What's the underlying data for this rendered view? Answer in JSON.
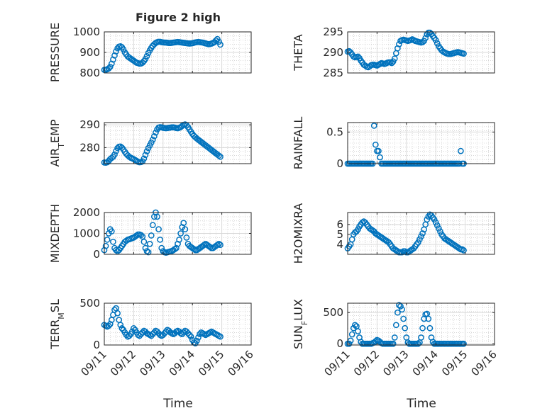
{
  "figure": {
    "title": "Figure 2 high",
    "xlabel": "Time"
  },
  "chart_data": [
    {
      "type": "scatter",
      "ylabel": "PRESSURE",
      "ylim": [
        800,
        1000
      ],
      "yticks": [
        800,
        900,
        1000
      ],
      "x": [
        0.0,
        0.05,
        0.1,
        0.15,
        0.2,
        0.25,
        0.3,
        0.35,
        0.4,
        0.45,
        0.5,
        0.55,
        0.6,
        0.65,
        0.7,
        0.75,
        0.8,
        0.85,
        0.9,
        0.95,
        1.0,
        1.05,
        1.1,
        1.15,
        1.2,
        1.25,
        1.3,
        1.35,
        1.4,
        1.45,
        1.5,
        1.55,
        1.6,
        1.65,
        1.7,
        1.75,
        1.8,
        1.85,
        1.9,
        1.95,
        2.0,
        2.05,
        2.1,
        2.15,
        2.2,
        2.25,
        2.3,
        2.35,
        2.4,
        2.45,
        2.5,
        2.55,
        2.6,
        2.65,
        2.7,
        2.75,
        2.8,
        2.85,
        2.9,
        2.95,
        3.0,
        3.05,
        3.1,
        3.15,
        3.2,
        3.25,
        3.3,
        3.35,
        3.4,
        3.45,
        3.5,
        3.55,
        3.6,
        3.65,
        3.7,
        3.75,
        3.8,
        3.85,
        3.9,
        3.95
      ],
      "y": [
        815,
        815,
        818,
        822,
        830,
        845,
        865,
        885,
        905,
        920,
        928,
        930,
        925,
        915,
        900,
        890,
        880,
        875,
        870,
        865,
        860,
        855,
        850,
        848,
        845,
        846,
        850,
        858,
        868,
        882,
        897,
        910,
        922,
        932,
        940,
        946,
        950,
        952,
        952,
        950,
        949,
        948,
        948,
        947,
        946,
        946,
        947,
        948,
        949,
        950,
        951,
        950,
        949,
        948,
        947,
        946,
        945,
        944,
        943,
        944,
        945,
        947,
        949,
        950,
        951,
        950,
        949,
        948,
        946,
        944,
        942,
        940,
        941,
        943,
        946,
        950,
        958,
        965,
        952,
        938
      ]
    },
    {
      "type": "scatter",
      "ylabel": "THETA",
      "ylim": [
        285,
        295
      ],
      "yticks": [
        285,
        290,
        295
      ],
      "x": [
        0.0,
        0.05,
        0.1,
        0.15,
        0.2,
        0.25,
        0.3,
        0.35,
        0.4,
        0.45,
        0.5,
        0.55,
        0.6,
        0.65,
        0.7,
        0.75,
        0.8,
        0.85,
        0.9,
        0.95,
        1.0,
        1.05,
        1.1,
        1.15,
        1.2,
        1.25,
        1.3,
        1.35,
        1.4,
        1.45,
        1.5,
        1.55,
        1.6,
        1.65,
        1.7,
        1.75,
        1.8,
        1.85,
        1.9,
        1.95,
        2.0,
        2.05,
        2.1,
        2.15,
        2.2,
        2.25,
        2.3,
        2.35,
        2.4,
        2.45,
        2.5,
        2.55,
        2.6,
        2.65,
        2.7,
        2.75,
        2.8,
        2.85,
        2.9,
        2.95,
        3.0,
        3.05,
        3.1,
        3.15,
        3.2,
        3.25,
        3.3,
        3.35,
        3.4,
        3.45,
        3.5,
        3.55,
        3.6,
        3.65,
        3.7,
        3.75,
        3.8,
        3.85,
        3.9,
        3.95
      ],
      "y": [
        290.2,
        290.3,
        290.0,
        289.5,
        289.0,
        288.8,
        288.9,
        289.0,
        288.6,
        288.0,
        287.5,
        287.0,
        286.8,
        286.5,
        286.4,
        286.6,
        286.9,
        287.0,
        287.0,
        286.9,
        286.8,
        287.0,
        287.2,
        287.4,
        287.3,
        287.2,
        287.3,
        287.5,
        287.6,
        287.6,
        287.4,
        287.8,
        288.5,
        289.8,
        291.0,
        292.0,
        292.8,
        293.0,
        293.1,
        293.0,
        292.9,
        292.8,
        292.9,
        293.0,
        293.2,
        293.0,
        292.8,
        292.7,
        292.6,
        292.5,
        292.4,
        292.5,
        292.8,
        293.5,
        294.4,
        294.8,
        294.8,
        294.5,
        294.0,
        293.5,
        293.0,
        292.2,
        291.5,
        291.0,
        290.5,
        290.2,
        290.0,
        289.8,
        289.7,
        289.6,
        289.6,
        289.7,
        289.8,
        289.9,
        290.0,
        290.1,
        290.0,
        289.9,
        289.8,
        289.7
      ]
    },
    {
      "type": "scatter",
      "ylabel": "AIR_TEMP",
      "ylim": [
        273,
        291
      ],
      "yticks": [
        280,
        290
      ],
      "x": [
        0.0,
        0.05,
        0.1,
        0.15,
        0.2,
        0.25,
        0.3,
        0.35,
        0.4,
        0.45,
        0.5,
        0.55,
        0.6,
        0.65,
        0.7,
        0.75,
        0.8,
        0.85,
        0.9,
        0.95,
        1.0,
        1.05,
        1.1,
        1.15,
        1.2,
        1.25,
        1.3,
        1.35,
        1.4,
        1.45,
        1.5,
        1.55,
        1.6,
        1.65,
        1.7,
        1.75,
        1.8,
        1.85,
        1.9,
        1.95,
        2.0,
        2.05,
        2.1,
        2.15,
        2.2,
        2.25,
        2.3,
        2.35,
        2.4,
        2.45,
        2.5,
        2.55,
        2.6,
        2.65,
        2.7,
        2.75,
        2.8,
        2.85,
        2.9,
        2.95,
        3.0,
        3.05,
        3.1,
        3.15,
        3.2,
        3.25,
        3.3,
        3.35,
        3.4,
        3.45,
        3.5,
        3.55,
        3.6,
        3.65,
        3.7,
        3.75,
        3.8,
        3.85,
        3.9,
        3.95
      ],
      "y": [
        273.5,
        273.4,
        273.6,
        274.2,
        275.0,
        275.5,
        276.0,
        277.0,
        278.5,
        279.8,
        280.4,
        280.5,
        280.0,
        279.2,
        278.2,
        277.3,
        276.6,
        276.0,
        275.6,
        275.3,
        275.0,
        274.6,
        274.2,
        273.8,
        273.6,
        273.7,
        274.0,
        275.2,
        276.8,
        278.4,
        279.8,
        281.0,
        282.2,
        283.5,
        285.0,
        286.6,
        288.0,
        288.8,
        289.0,
        288.9,
        288.7,
        288.6,
        288.5,
        288.6,
        288.7,
        288.8,
        288.9,
        288.9,
        288.8,
        288.6,
        288.5,
        288.7,
        289.0,
        289.5,
        290.0,
        290.2,
        289.8,
        289.0,
        288.0,
        287.0,
        286.0,
        285.2,
        284.6,
        284.0,
        283.5,
        283.0,
        282.5,
        282.0,
        281.5,
        281.0,
        280.5,
        280.0,
        279.5,
        279.0,
        278.5,
        278.0,
        277.5,
        277.0,
        276.5,
        276.0
      ]
    },
    {
      "type": "scatter",
      "ylabel": "RAINFALL",
      "ylim": [
        0,
        0.65
      ],
      "yticks": [
        0,
        0.5
      ],
      "x": [
        0.0,
        0.05,
        0.1,
        0.15,
        0.2,
        0.25,
        0.3,
        0.35,
        0.4,
        0.45,
        0.5,
        0.55,
        0.6,
        0.65,
        0.7,
        0.75,
        0.8,
        0.85,
        0.9,
        0.95,
        1.0,
        1.05,
        1.1,
        1.15,
        1.2,
        1.25,
        1.3,
        1.35,
        1.4,
        1.45,
        1.5,
        1.55,
        1.6,
        1.65,
        1.7,
        1.75,
        1.8,
        1.85,
        1.9,
        1.95,
        2.0,
        2.05,
        2.1,
        2.15,
        2.2,
        2.25,
        2.3,
        2.35,
        2.4,
        2.45,
        2.5,
        2.55,
        2.6,
        2.65,
        2.7,
        2.75,
        2.8,
        2.85,
        2.9,
        2.95,
        3.0,
        3.05,
        3.1,
        3.15,
        3.2,
        3.25,
        3.3,
        3.35,
        3.4,
        3.45,
        3.5,
        3.55,
        3.6,
        3.65,
        3.7,
        3.75,
        3.8,
        3.85,
        3.9,
        3.95
      ],
      "y": [
        0,
        0,
        0,
        0,
        0,
        0,
        0,
        0,
        0,
        0,
        0,
        0,
        0,
        0,
        0,
        0,
        0,
        0,
        0.6,
        0.3,
        0.2,
        0.2,
        0.1,
        0,
        0,
        0,
        0,
        0,
        0,
        0,
        0,
        0,
        0,
        0,
        0,
        0,
        0,
        0,
        0,
        0,
        0,
        0,
        0,
        0,
        0,
        0,
        0,
        0,
        0,
        0,
        0,
        0,
        0,
        0,
        0,
        0,
        0,
        0,
        0,
        0,
        0,
        0,
        0,
        0,
        0,
        0,
        0,
        0,
        0,
        0,
        0,
        0,
        0,
        0,
        0,
        0,
        0,
        0.2,
        0,
        0
      ]
    },
    {
      "type": "scatter",
      "ylabel": "MIXDEPTH",
      "ylim": [
        0,
        2000
      ],
      "yticks": [
        0,
        1000,
        2000
      ],
      "x": [
        0.0,
        0.05,
        0.1,
        0.15,
        0.2,
        0.25,
        0.3,
        0.35,
        0.4,
        0.45,
        0.5,
        0.55,
        0.6,
        0.65,
        0.7,
        0.75,
        0.8,
        0.85,
        0.9,
        0.95,
        1.0,
        1.05,
        1.1,
        1.15,
        1.2,
        1.25,
        1.3,
        1.35,
        1.4,
        1.45,
        1.5,
        1.55,
        1.6,
        1.65,
        1.7,
        1.75,
        1.8,
        1.85,
        1.9,
        1.95,
        2.0,
        2.05,
        2.1,
        2.15,
        2.2,
        2.25,
        2.3,
        2.35,
        2.4,
        2.45,
        2.5,
        2.55,
        2.6,
        2.65,
        2.7,
        2.75,
        2.8,
        2.85,
        2.9,
        2.95,
        3.0,
        3.05,
        3.1,
        3.15,
        3.2,
        3.25,
        3.3,
        3.35,
        3.4,
        3.45,
        3.5,
        3.55,
        3.6,
        3.65,
        3.7,
        3.75,
        3.8,
        3.85,
        3.9,
        3.95
      ],
      "y": [
        200,
        400,
        700,
        1000,
        1200,
        1100,
        600,
        300,
        200,
        150,
        200,
        300,
        400,
        500,
        600,
        650,
        700,
        720,
        750,
        780,
        800,
        850,
        900,
        950,
        950,
        920,
        850,
        600,
        300,
        150,
        100,
        500,
        900,
        1400,
        1800,
        2000,
        1800,
        1200,
        700,
        300,
        150,
        100,
        80,
        100,
        120,
        140,
        160,
        200,
        250,
        300,
        500,
        700,
        1000,
        1300,
        1500,
        1200,
        800,
        500,
        400,
        350,
        300,
        250,
        200,
        200,
        250,
        300,
        350,
        400,
        450,
        500,
        450,
        400,
        350,
        300,
        300,
        350,
        400,
        450,
        500,
        450
      ]
    },
    {
      "type": "scatter",
      "ylabel": "H2OMIXRA",
      "ylim": [
        3,
        7.2
      ],
      "yticks": [
        4,
        5,
        6
      ],
      "x": [
        0.0,
        0.05,
        0.1,
        0.15,
        0.2,
        0.25,
        0.3,
        0.35,
        0.4,
        0.45,
        0.5,
        0.55,
        0.6,
        0.65,
        0.7,
        0.75,
        0.8,
        0.85,
        0.9,
        0.95,
        1.0,
        1.05,
        1.1,
        1.15,
        1.2,
        1.25,
        1.3,
        1.35,
        1.4,
        1.45,
        1.5,
        1.55,
        1.6,
        1.65,
        1.7,
        1.75,
        1.8,
        1.85,
        1.9,
        1.95,
        2.0,
        2.05,
        2.1,
        2.15,
        2.2,
        2.25,
        2.3,
        2.35,
        2.4,
        2.45,
        2.5,
        2.55,
        2.6,
        2.65,
        2.7,
        2.75,
        2.8,
        2.85,
        2.9,
        2.95,
        3.0,
        3.05,
        3.1,
        3.15,
        3.2,
        3.25,
        3.3,
        3.35,
        3.4,
        3.45,
        3.5,
        3.55,
        3.6,
        3.65,
        3.7,
        3.75,
        3.8,
        3.85,
        3.9,
        3.95
      ],
      "y": [
        3.6,
        3.8,
        4.0,
        4.5,
        5.0,
        5.2,
        5.3,
        5.5,
        5.8,
        6.0,
        6.2,
        6.3,
        6.2,
        6.0,
        5.8,
        5.6,
        5.5,
        5.4,
        5.3,
        5.1,
        5.0,
        4.9,
        4.8,
        4.7,
        4.6,
        4.5,
        4.4,
        4.3,
        4.2,
        4.0,
        3.8,
        3.6,
        3.5,
        3.4,
        3.3,
        3.2,
        3.2,
        3.2,
        3.3,
        3.3,
        3.2,
        3.2,
        3.3,
        3.4,
        3.5,
        3.6,
        3.8,
        4.0,
        4.2,
        4.5,
        4.8,
        5.1,
        5.5,
        6.0,
        6.5,
        6.8,
        7.0,
        6.9,
        6.7,
        6.5,
        6.2,
        5.9,
        5.6,
        5.3,
        5.0,
        4.8,
        4.6,
        4.5,
        4.4,
        4.3,
        4.2,
        4.1,
        4.0,
        3.9,
        3.8,
        3.7,
        3.6,
        3.5,
        3.5,
        3.4
      ]
    },
    {
      "type": "scatter",
      "ylabel": "TERR_MSL",
      "ylim": [
        0,
        500
      ],
      "yticks": [
        0,
        500
      ],
      "x": [
        0.0,
        0.05,
        0.1,
        0.15,
        0.2,
        0.25,
        0.3,
        0.35,
        0.4,
        0.45,
        0.5,
        0.55,
        0.6,
        0.65,
        0.7,
        0.75,
        0.8,
        0.85,
        0.9,
        0.95,
        1.0,
        1.05,
        1.1,
        1.15,
        1.2,
        1.25,
        1.3,
        1.35,
        1.4,
        1.45,
        1.5,
        1.55,
        1.6,
        1.65,
        1.7,
        1.75,
        1.8,
        1.85,
        1.9,
        1.95,
        2.0,
        2.05,
        2.1,
        2.15,
        2.2,
        2.25,
        2.3,
        2.35,
        2.4,
        2.45,
        2.5,
        2.55,
        2.6,
        2.65,
        2.7,
        2.75,
        2.8,
        2.85,
        2.9,
        2.95,
        3.0,
        3.05,
        3.1,
        3.15,
        3.2,
        3.25,
        3.3,
        3.35,
        3.4,
        3.45,
        3.5,
        3.55,
        3.6,
        3.65,
        3.7,
        3.75,
        3.8,
        3.85,
        3.9,
        3.95
      ],
      "y": [
        240,
        230,
        220,
        230,
        250,
        300,
        360,
        420,
        440,
        380,
        300,
        240,
        200,
        180,
        150,
        120,
        100,
        110,
        130,
        160,
        200,
        180,
        150,
        120,
        110,
        130,
        150,
        170,
        160,
        140,
        130,
        120,
        110,
        130,
        150,
        170,
        160,
        140,
        120,
        110,
        120,
        140,
        160,
        180,
        170,
        150,
        140,
        130,
        140,
        160,
        170,
        160,
        140,
        130,
        150,
        170,
        160,
        140,
        120,
        100,
        60,
        30,
        20,
        50,
        90,
        130,
        150,
        140,
        130,
        120,
        130,
        140,
        150,
        160,
        150,
        140,
        130,
        120,
        110,
        100
      ]
    },
    {
      "type": "scatter",
      "ylabel": "SUN_FLUX",
      "ylim": [
        -20,
        650
      ],
      "yticks": [
        0,
        500
      ],
      "x": [
        0.0,
        0.05,
        0.1,
        0.15,
        0.2,
        0.25,
        0.3,
        0.35,
        0.4,
        0.45,
        0.5,
        0.55,
        0.6,
        0.65,
        0.7,
        0.75,
        0.8,
        0.85,
        0.9,
        0.95,
        1.0,
        1.05,
        1.1,
        1.15,
        1.2,
        1.25,
        1.3,
        1.35,
        1.4,
        1.45,
        1.5,
        1.55,
        1.6,
        1.65,
        1.7,
        1.75,
        1.8,
        1.85,
        1.9,
        1.95,
        2.0,
        2.05,
        2.1,
        2.15,
        2.2,
        2.25,
        2.3,
        2.35,
        2.4,
        2.45,
        2.5,
        2.55,
        2.6,
        2.65,
        2.7,
        2.75,
        2.8,
        2.85,
        2.9,
        2.95,
        3.0,
        3.05,
        3.1,
        3.15,
        3.2,
        3.25,
        3.3,
        3.35,
        3.4,
        3.45,
        3.5,
        3.55,
        3.6,
        3.65,
        3.7,
        3.75,
        3.8,
        3.85,
        3.9,
        3.95
      ],
      "y": [
        0,
        0,
        50,
        150,
        250,
        300,
        280,
        200,
        100,
        30,
        0,
        0,
        0,
        0,
        0,
        0,
        0,
        10,
        20,
        40,
        60,
        50,
        30,
        10,
        0,
        0,
        0,
        0,
        0,
        0,
        0,
        0,
        100,
        300,
        500,
        620,
        600,
        550,
        400,
        250,
        100,
        20,
        0,
        0,
        0,
        0,
        0,
        0,
        0,
        20,
        100,
        250,
        400,
        470,
        480,
        400,
        250,
        100,
        30,
        0,
        0,
        0,
        0,
        0,
        0,
        0,
        0,
        0,
        0,
        0,
        0,
        0,
        0,
        0,
        0,
        0,
        0,
        0,
        0,
        0
      ]
    }
  ],
  "x_axis": {
    "ticks": [
      0,
      1,
      2,
      3,
      4,
      5
    ],
    "tick_labels": [
      "09/11",
      "09/12",
      "09/13",
      "09/14",
      "09/15",
      "09/16"
    ]
  },
  "colors": {
    "marker": "#0072BD",
    "axis": "#262626",
    "grid": "#B0B0B0"
  }
}
